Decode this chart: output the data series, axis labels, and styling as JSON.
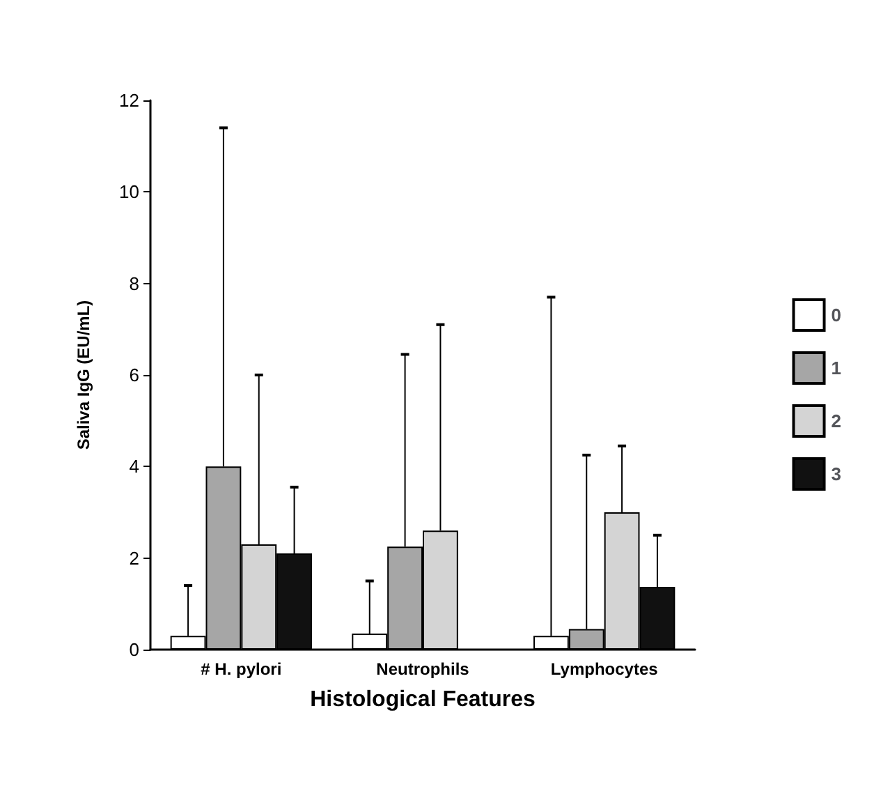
{
  "chart_data": {
    "type": "bar",
    "xlabel": "Histological Features",
    "ylabel": "Saliva IgG (EU/mL)",
    "categories": [
      "# H. pylori",
      "Neutrophils",
      "Lymphocytes"
    ],
    "series": [
      {
        "name": "0",
        "color": "#ffffff",
        "values": [
          0.3,
          0.35,
          0.3
        ],
        "errors": [
          [
            0.3,
            1.4
          ],
          [
            0.35,
            1.5
          ],
          [
            0.3,
            7.7
          ]
        ]
      },
      {
        "name": "1",
        "color": "#a6a6a6",
        "values": [
          4.0,
          2.25,
          0.45
        ],
        "errors": [
          [
            4.0,
            11.4
          ],
          [
            2.25,
            6.45
          ],
          [
            0.45,
            4.25
          ]
        ]
      },
      {
        "name": "2",
        "color": "#d4d4d4",
        "values": [
          2.3,
          2.6,
          3.0
        ],
        "errors": [
          [
            2.3,
            6.0
          ],
          [
            2.6,
            7.1
          ],
          [
            3.0,
            4.45
          ]
        ]
      },
      {
        "name": "3",
        "color": "#111111",
        "values": [
          2.1,
          null,
          1.37
        ],
        "errors": [
          [
            2.1,
            3.55
          ],
          null,
          [
            1.37,
            2.5
          ]
        ]
      }
    ],
    "ylim": [
      0,
      12
    ],
    "yticks": [
      0,
      2,
      4,
      6,
      8,
      10,
      12
    ],
    "grid": false,
    "legend": "right"
  }
}
